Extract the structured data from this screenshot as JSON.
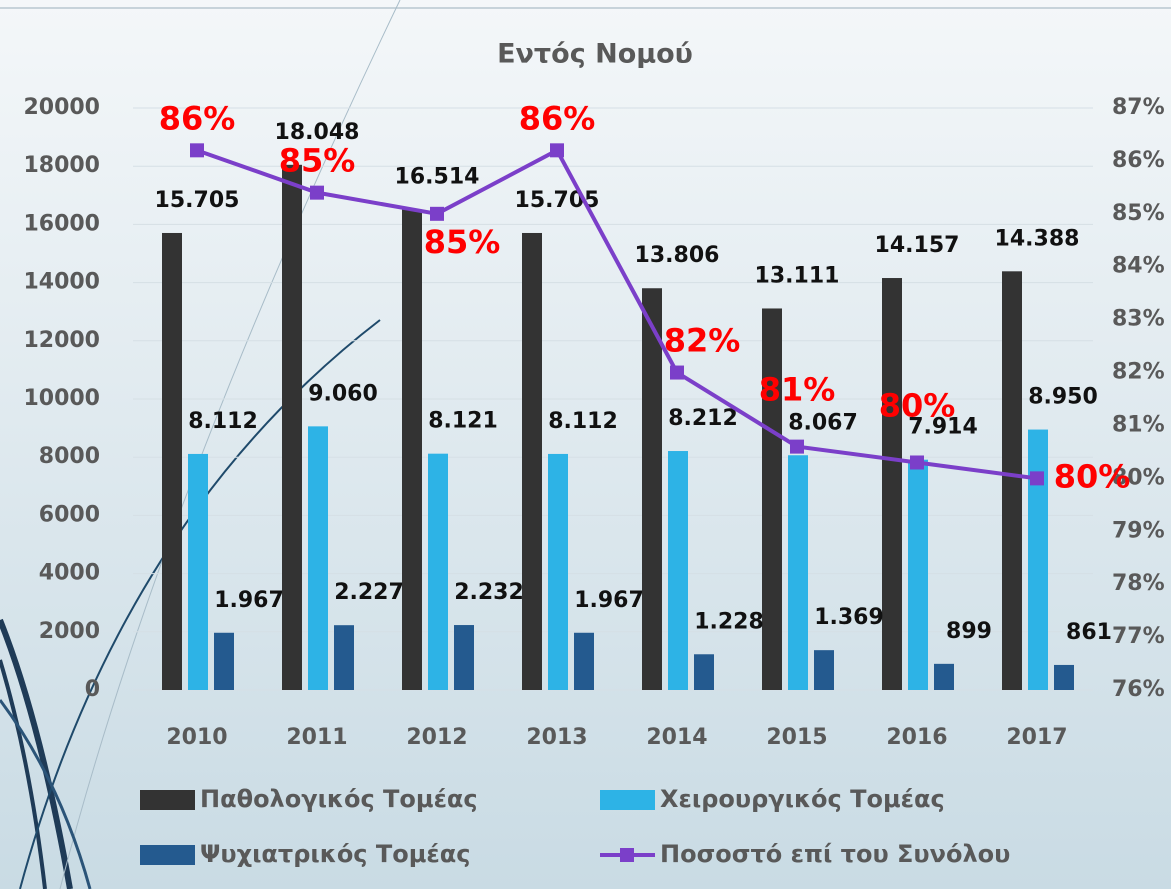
{
  "chart_data": {
    "type": "bar-line",
    "title": "Εντός Νομού",
    "categories": [
      "2010",
      "2011",
      "2012",
      "2013",
      "2014",
      "2015",
      "2016",
      "2017"
    ],
    "series": [
      {
        "name": "Παθολογικός Τομέας",
        "color": "#333333",
        "type": "bar",
        "values": [
          15705,
          18048,
          16514,
          15705,
          13806,
          13111,
          14157,
          14388
        ],
        "value_labels": [
          "15.705",
          "18.048",
          "16.514",
          "15.705",
          "13.806",
          "13.111",
          "14.157",
          "14.388"
        ]
      },
      {
        "name": "Χειρουργικός Τομέας",
        "color": "#2db3e6",
        "type": "bar",
        "values": [
          8112,
          9060,
          8121,
          8112,
          8212,
          8067,
          7914,
          8950
        ],
        "value_labels": [
          "8.112",
          "9.060",
          "8.121",
          "8.112",
          "8.212",
          "8.067",
          "7.914",
          "8.950"
        ]
      },
      {
        "name": "Ψυχιατρικός Τομέας",
        "color": "#245a8f",
        "type": "bar",
        "values": [
          1967,
          2227,
          2232,
          1967,
          1228,
          1369,
          899,
          861
        ],
        "value_labels": [
          "1.967",
          "2.227",
          "2.232",
          "1.967",
          "1.228",
          "1.369",
          "899",
          "861"
        ]
      },
      {
        "name": "Ποσοστό επί του Συνόλου",
        "color": "#7b3fc9",
        "type": "line",
        "axis": "y2",
        "values": [
          86.2,
          85.4,
          85.0,
          86.2,
          82.0,
          80.6,
          80.3,
          80.0
        ],
        "value_labels": [
          "86%",
          "85%",
          "85%",
          "86%",
          "82%",
          "81%",
          "80%",
          "80%"
        ]
      }
    ],
    "ylim": [
      0,
      20000
    ],
    "yticks": [
      0,
      2000,
      4000,
      6000,
      8000,
      10000,
      12000,
      14000,
      16000,
      18000,
      20000
    ],
    "y2lim": [
      76,
      87
    ],
    "y2ticks": [
      {
        "value": 76,
        "label": "76%"
      },
      {
        "value": 77,
        "label": "77%"
      },
      {
        "value": 78,
        "label": "78%"
      },
      {
        "value": 79,
        "label": "79%"
      },
      {
        "value": 80,
        "label": "80%"
      },
      {
        "value": 81,
        "label": "81%"
      },
      {
        "value": 82,
        "label": "82%"
      },
      {
        "value": 83,
        "label": "83%"
      },
      {
        "value": 84,
        "label": "84%"
      },
      {
        "value": 85,
        "label": "85%"
      },
      {
        "value": 86,
        "label": "86%"
      },
      {
        "value": 87,
        "label": "87%"
      }
    ],
    "grid": true,
    "legend": "bottom"
  }
}
